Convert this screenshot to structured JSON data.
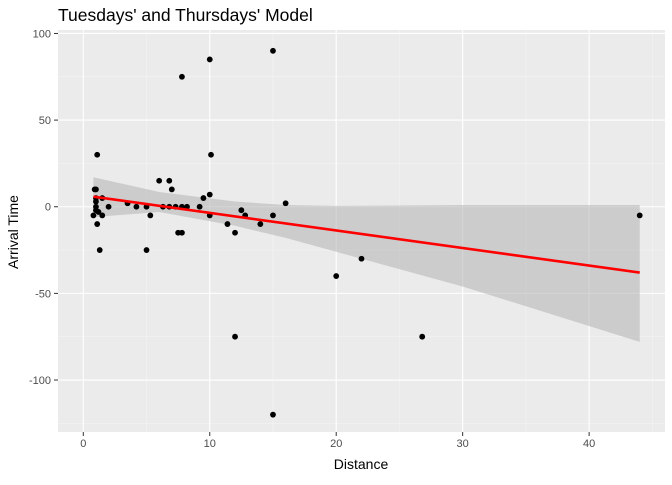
{
  "chart_data": {
    "type": "scatter",
    "title": "Tuesdays' and Thursdays' Model",
    "xlabel": "Distance",
    "ylabel": "Arrival Time",
    "xlim": [
      -2,
      46
    ],
    "ylim": [
      -130,
      102
    ],
    "x_ticks": [
      0,
      10,
      20,
      30,
      40
    ],
    "y_ticks": [
      -100,
      -50,
      0,
      50,
      100
    ],
    "x_tick_labels": [
      "0",
      "10",
      "20",
      "30",
      "40"
    ],
    "y_tick_labels": [
      "-100",
      "-50",
      "0",
      "50",
      "100"
    ],
    "grid": true,
    "colors": {
      "panel": "#ebebeb",
      "grid_major": "#ffffff",
      "grid_minor": "#f4f4f4",
      "points": "#000000",
      "fit_line": "#ff0000",
      "ribbon": "#b3b3b3"
    },
    "series": [
      {
        "values": [
          [
            0.8,
            -5
          ],
          [
            0.9,
            10
          ],
          [
            1.0,
            10
          ],
          [
            1.0,
            5
          ],
          [
            1.0,
            3
          ],
          [
            1.0,
            0
          ],
          [
            1.0,
            -2
          ],
          [
            1.1,
            30
          ],
          [
            1.1,
            -10
          ],
          [
            1.2,
            -3
          ],
          [
            1.3,
            -25
          ],
          [
            1.5,
            -5
          ],
          [
            1.5,
            5
          ],
          [
            2.0,
            0
          ],
          [
            3.5,
            2
          ],
          [
            4.2,
            0
          ],
          [
            5.0,
            0
          ],
          [
            5.0,
            -25
          ],
          [
            5.3,
            -5
          ],
          [
            6.0,
            15
          ],
          [
            6.3,
            0
          ],
          [
            6.8,
            15
          ],
          [
            6.8,
            0
          ],
          [
            7.0,
            10
          ],
          [
            7.3,
            0
          ],
          [
            7.5,
            -15
          ],
          [
            7.8,
            -15
          ],
          [
            7.8,
            0
          ],
          [
            7.8,
            75
          ],
          [
            8.2,
            0
          ],
          [
            9.2,
            0
          ],
          [
            9.5,
            5
          ],
          [
            10.0,
            85
          ],
          [
            10.0,
            7
          ],
          [
            10.1,
            30
          ],
          [
            10.0,
            -5
          ],
          [
            11.4,
            -10
          ],
          [
            12.0,
            -15
          ],
          [
            12.0,
            -75
          ],
          [
            12.5,
            -2
          ],
          [
            12.8,
            -5
          ],
          [
            14.0,
            -10
          ],
          [
            15.0,
            -5
          ],
          [
            15.0,
            90
          ],
          [
            15.0,
            -120
          ],
          [
            16.0,
            2
          ],
          [
            20.0,
            -40
          ],
          [
            22.0,
            -30
          ],
          [
            26.8,
            -75
          ],
          [
            44.0,
            -5
          ]
        ]
      }
    ],
    "fit": {
      "x": [
        0.8,
        44.0
      ],
      "y": [
        5.8,
        -38.0
      ]
    },
    "ribbon": {
      "x": [
        0.8,
        6.0,
        12.0,
        16.0,
        20.0,
        30.0,
        44.0
      ],
      "upper": [
        17.0,
        8.5,
        3.0,
        1.0,
        0.5,
        1.0,
        1.0
      ],
      "lower": [
        -6.0,
        -3.0,
        -11.0,
        -18.0,
        -26.0,
        -46.0,
        -78.0
      ]
    }
  }
}
